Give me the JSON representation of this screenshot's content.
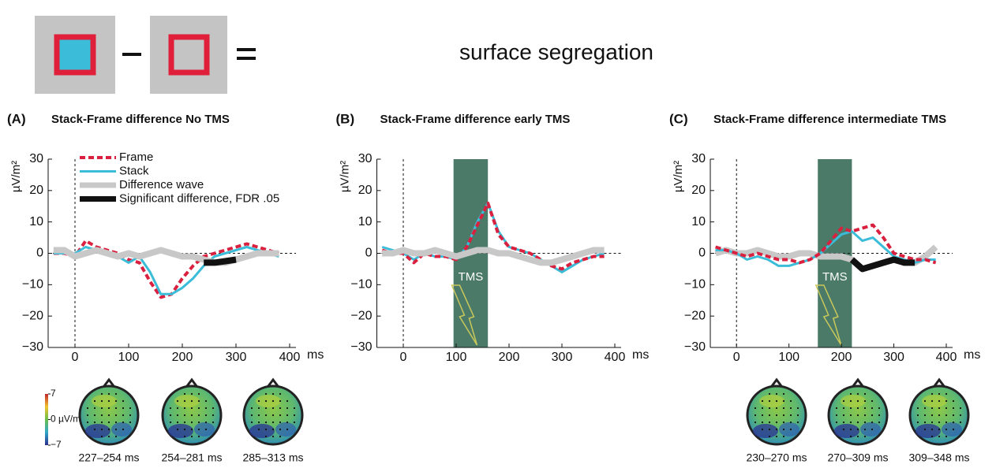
{
  "header": {
    "title": "surface segregation"
  },
  "chart_data": [
    {
      "type": "line",
      "panel": "(A)",
      "title": "Stack-Frame difference No TMS",
      "xlabel": "ms",
      "ylabel": "µV/m²",
      "xlim": [
        -50,
        400
      ],
      "xticks": [
        0,
        100,
        200,
        300,
        400
      ],
      "ylim": [
        -30,
        30
      ],
      "yticks": [
        {
          "value": -30,
          "label": "−30"
        },
        {
          "value": -20,
          "label": "−20"
        },
        {
          "value": -10,
          "label": "−10"
        },
        0,
        10,
        20,
        30
      ],
      "x": [
        -40,
        -20,
        0,
        20,
        40,
        60,
        80,
        100,
        120,
        140,
        160,
        180,
        200,
        220,
        240,
        260,
        280,
        300,
        320,
        340,
        360,
        380
      ],
      "series": [
        {
          "name": "Frame",
          "color": "#d9203f",
          "style": "dashed",
          "values": [
            0,
            0,
            -1,
            4,
            2,
            1,
            0,
            -2,
            -3,
            -9,
            -14,
            -13,
            -8,
            -4,
            -1,
            0,
            1,
            2,
            3,
            2,
            1,
            0
          ]
        },
        {
          "name": "Stack",
          "color": "#3bbcd8",
          "style": "solid",
          "values": [
            0,
            0,
            0,
            2,
            1,
            0,
            -1,
            -3,
            -1,
            -6,
            -13,
            -13,
            -11,
            -8,
            -4,
            -1,
            0,
            1,
            2,
            1,
            0,
            -1
          ]
        },
        {
          "name": "Difference wave",
          "color": "#c8c8c8",
          "style": "thick",
          "values": [
            1,
            1,
            -1,
            0,
            1,
            0,
            -1,
            0,
            -1,
            0,
            1,
            0,
            -1,
            -1,
            -2,
            -3,
            -3,
            -2,
            -1,
            0,
            0,
            0
          ]
        },
        {
          "name": "Significant difference, FDR .05",
          "color": "#111111",
          "style": "thick",
          "values": [
            null,
            null,
            null,
            null,
            null,
            null,
            null,
            null,
            null,
            null,
            null,
            null,
            null,
            null,
            -3,
            -3,
            -2.5,
            -2,
            null,
            null,
            null,
            null
          ]
        }
      ],
      "colorbar": {
        "ticks": [
          7,
          {
            "value": 0,
            "label": "0 µV/m²"
          },
          {
            "value": -7,
            "label": "−7"
          }
        ]
      },
      "topomap_labels": [
        "227–254 ms",
        "254–281 ms",
        "285–313 ms"
      ]
    },
    {
      "type": "line",
      "panel": "(B)",
      "title": "Stack-Frame difference early TMS",
      "xlabel": "ms",
      "ylabel": "µV/m²",
      "xlim": [
        -50,
        400
      ],
      "xticks": [
        0,
        100,
        200,
        300,
        400
      ],
      "ylim": [
        -30,
        30
      ],
      "yticks": [
        {
          "value": -30,
          "label": "−30"
        },
        {
          "value": -20,
          "label": "−20"
        },
        {
          "value": -10,
          "label": "−10"
        },
        0,
        10,
        20,
        30
      ],
      "x": [
        -40,
        -20,
        0,
        20,
        40,
        60,
        80,
        100,
        120,
        140,
        160,
        180,
        200,
        220,
        240,
        260,
        280,
        300,
        320,
        340,
        360,
        380
      ],
      "shade": {
        "x": [
          95,
          160
        ],
        "label": "TMS",
        "color": "#4b7a68"
      },
      "series": [
        {
          "color": "#3bbcd8",
          "style": "solid",
          "values": [
            2,
            1,
            0,
            -2,
            0,
            -1,
            -1,
            -2,
            2,
            10,
            16,
            7,
            2,
            1,
            0,
            -2,
            -4,
            -6,
            -4,
            -2,
            -1,
            0
          ]
        },
        {
          "color": "#d9203f",
          "style": "dashed",
          "values": [
            1,
            0,
            0,
            -3,
            0,
            -1,
            -1,
            -2,
            2,
            9,
            16,
            6,
            2,
            1,
            0,
            -2,
            -4,
            -5,
            -3,
            -2,
            -1,
            -1
          ]
        },
        {
          "color": "#c8c8c8",
          "style": "thick",
          "values": [
            0,
            0,
            1,
            0,
            0,
            1,
            0,
            -1,
            0,
            1,
            1,
            0,
            0,
            -1,
            -2,
            -3,
            -3,
            -2,
            -1,
            0,
            1,
            1
          ]
        }
      ]
    },
    {
      "type": "line",
      "panel": "(C)",
      "title": "Stack-Frame difference intermediate TMS",
      "xlabel": "ms",
      "ylabel": "µV/m²",
      "xlim": [
        -50,
        400
      ],
      "xticks": [
        0,
        100,
        200,
        300,
        400
      ],
      "ylim": [
        -30,
        30
      ],
      "yticks": [
        {
          "value": -30,
          "label": "−30"
        },
        {
          "value": -20,
          "label": "−20"
        },
        {
          "value": -10,
          "label": "−10"
        },
        0,
        10,
        20,
        30
      ],
      "x": [
        -40,
        -20,
        0,
        20,
        40,
        60,
        80,
        100,
        120,
        140,
        160,
        180,
        200,
        220,
        240,
        260,
        280,
        300,
        320,
        340,
        360,
        380
      ],
      "shade": {
        "x": [
          155,
          220
        ],
        "label": "TMS",
        "color": "#4b7a68"
      },
      "series": [
        {
          "color": "#c8c8c8",
          "style": "thick",
          "values": [
            0,
            1,
            0,
            0,
            1,
            0,
            -1,
            -1,
            0,
            0,
            -1,
            -1,
            -1,
            -2,
            -5,
            -4,
            -3,
            -2,
            -3,
            -3,
            -1,
            2
          ]
        },
        {
          "color": "#3bbcd8",
          "style": "solid",
          "values": [
            1,
            1,
            0,
            -2,
            -1,
            -2,
            -4,
            -4,
            -3,
            -2,
            0,
            3,
            6,
            7,
            4,
            5,
            2,
            -1,
            -2,
            -3,
            -2,
            -2
          ]
        },
        {
          "color": "#d9203f",
          "style": "dashed",
          "values": [
            2,
            1,
            0,
            -1,
            0,
            -1,
            -2,
            -2,
            -3,
            -2,
            0,
            4,
            8,
            7,
            8,
            9,
            5,
            0,
            -1,
            -2,
            -2,
            -3
          ]
        },
        {
          "color": "#111111",
          "style": "thick",
          "values": [
            null,
            null,
            null,
            null,
            null,
            null,
            null,
            null,
            null,
            null,
            null,
            null,
            null,
            -2,
            -5,
            -4,
            -3,
            -2,
            -3,
            -3,
            null,
            null
          ]
        }
      ],
      "topomap_labels": [
        "230–270 ms",
        "270–309 ms",
        "309–348 ms"
      ]
    }
  ]
}
